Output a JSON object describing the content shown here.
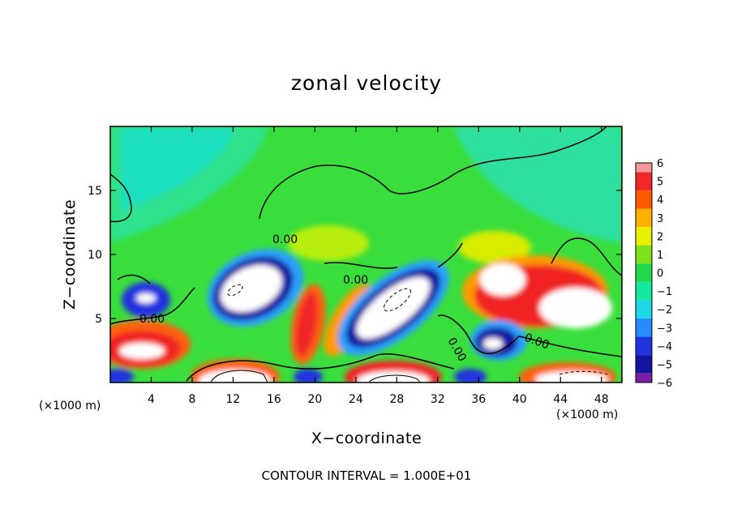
{
  "chart_data": {
    "type": "heatmap",
    "title": "zonal velocity",
    "xlabel": "X−coordinate",
    "ylabel": "Z−coordinate",
    "x_unit_label": "(×1000 m)",
    "y_unit_label": "(×1000 m)",
    "xlim": [
      0,
      50
    ],
    "ylim": [
      0,
      20
    ],
    "x_ticks": [
      4,
      8,
      12,
      16,
      20,
      24,
      28,
      32,
      36,
      40,
      44,
      48
    ],
    "y_ticks": [
      5,
      10,
      15
    ],
    "colorbar": {
      "levels": [
        -6,
        -5,
        -4,
        -3,
        -2,
        -1,
        0,
        1,
        2,
        3,
        4,
        5,
        6
      ],
      "labels": [
        "−6",
        "−5",
        "−4",
        "−3",
        "−2",
        "−1",
        "0",
        "1",
        "2",
        "3",
        "4",
        "5",
        "6"
      ],
      "colors": [
        "#7a1fa2",
        "#1414a0",
        "#2233e0",
        "#2a8bff",
        "#1fd6e6",
        "#14e8a0",
        "#22d84a",
        "#7ce01a",
        "#e8f000",
        "#ffb000",
        "#ff5a00",
        "#f02828",
        "#f29a9a"
      ]
    },
    "contour_labels": [
      "0.00",
      "0.00",
      "0.00",
      "0.00",
      "0.00"
    ],
    "footer": "CONTOUR INTERVAL = 1.000E+01"
  },
  "colors": {
    "background": "#33e04a",
    "cyan_region": "#22e0b4",
    "extreme_high": "#ffffff",
    "extreme_low": "#ffffff"
  }
}
